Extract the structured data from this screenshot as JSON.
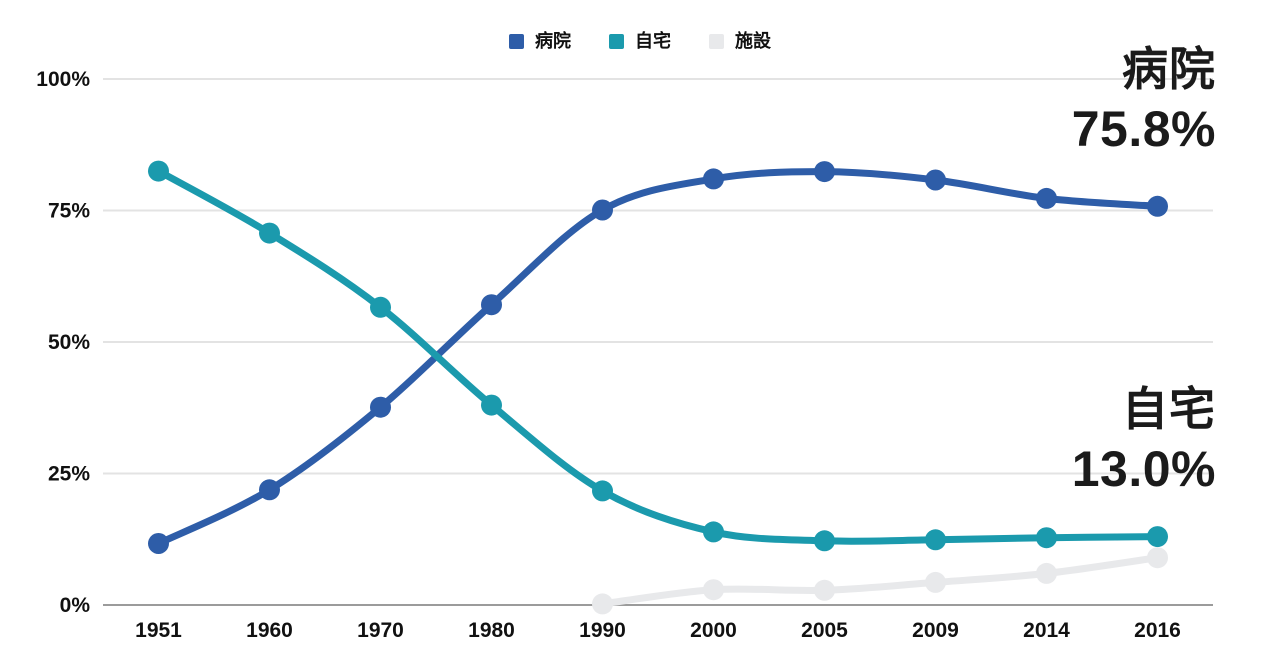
{
  "legend": {
    "items": [
      {
        "key": "hospital",
        "label": "病院",
        "color": "#2e5da8"
      },
      {
        "key": "home",
        "label": "自宅",
        "color": "#1b9aad"
      },
      {
        "key": "facility",
        "label": "施設",
        "color": "#e8e9eb"
      }
    ]
  },
  "annotations": {
    "hospital": {
      "title": "病院",
      "value": "75.8%"
    },
    "home": {
      "title": "自宅",
      "value": "13.0%"
    }
  },
  "colors": {
    "grid": "#e3e3e3",
    "axis": "#9b9b9b",
    "text": "#111111"
  },
  "chart_data": {
    "type": "line",
    "title": "",
    "xlabel": "",
    "ylabel": "",
    "categories": [
      "1951",
      "1960",
      "1970",
      "1980",
      "1990",
      "2000",
      "2005",
      "2009",
      "2014",
      "2016"
    ],
    "series": [
      {
        "key": "hospital",
        "name": "病院",
        "color": "#2e5da8",
        "values": [
          11.7,
          21.9,
          37.6,
          57.1,
          75.1,
          81.0,
          82.4,
          80.8,
          77.3,
          75.8
        ]
      },
      {
        "key": "home",
        "name": "自宅",
        "color": "#1b9aad",
        "values": [
          82.5,
          70.7,
          56.6,
          38.0,
          21.7,
          13.9,
          12.2,
          12.4,
          12.8,
          13.0
        ]
      },
      {
        "key": "facility",
        "name": "施設",
        "color": "#e8e9eb",
        "values": [
          null,
          null,
          null,
          null,
          0.2,
          2.9,
          2.8,
          4.3,
          6.0,
          9.0
        ]
      }
    ],
    "ylim": [
      0,
      100
    ],
    "yticks": [
      {
        "value": 0,
        "label": "0%"
      },
      {
        "value": 25,
        "label": "25%"
      },
      {
        "value": 50,
        "label": "50%"
      },
      {
        "value": 75,
        "label": "75%"
      },
      {
        "value": 100,
        "label": "100%"
      }
    ],
    "grid": true,
    "legend_position": "top",
    "end_labels": [
      {
        "series": "病院",
        "text": "75.8%"
      },
      {
        "series": "自宅",
        "text": "13.0%"
      }
    ]
  }
}
